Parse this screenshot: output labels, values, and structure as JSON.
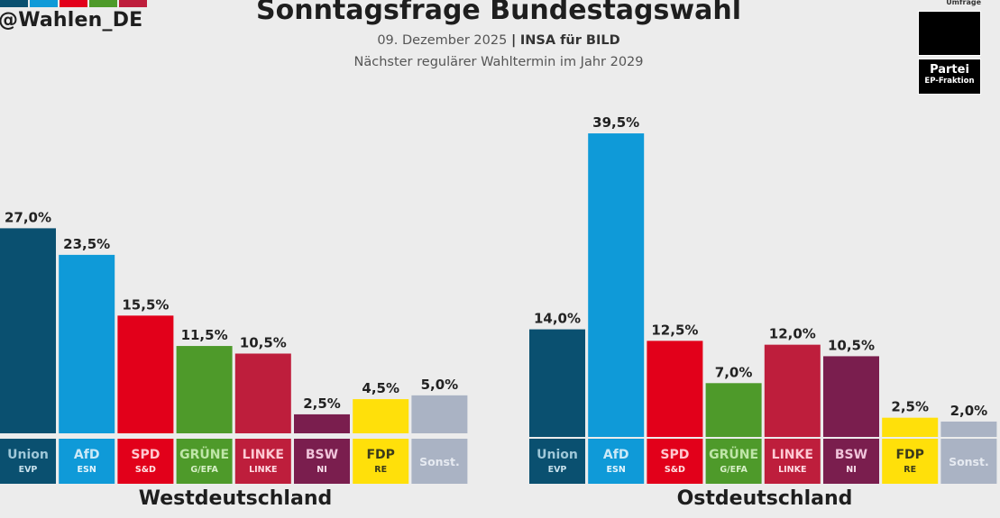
{
  "header": {
    "handle": "@Wahlen_DE",
    "title": "Sonntagsfrage Bundestagswahl",
    "date": "09. Dezember 2025",
    "separator": "|",
    "pollster": "INSA für BILD",
    "note": "Nächster regulärer Wahltermin im Jahr 2029",
    "logo_colors": [
      "#0a5070",
      "#0f9ad8",
      "#e2001a",
      "#4e9a2a",
      "#be1e3c"
    ]
  },
  "legend": {
    "head": "Umfrage",
    "parties_label": "Partei",
    "group_label": "EP-Fraktion"
  },
  "parties": [
    {
      "name": "Union",
      "group": "EVP",
      "color": "#0a5070",
      "text_color": "#9fc7d8",
      "group_color": "#c8e1ec"
    },
    {
      "name": "AfD",
      "group": "ESN",
      "color": "#0f9ad8",
      "text_color": "#cbe9f7",
      "group_color": "#e6f5fc"
    },
    {
      "name": "SPD",
      "group": "S&D",
      "color": "#e2001a",
      "text_color": "#ffc9cf",
      "group_color": "#ffe2e5"
    },
    {
      "name": "GRÜNE",
      "group": "G/EFA",
      "color": "#4e9a2a",
      "text_color": "#bfe6a8",
      "group_color": "#d8f0c9"
    },
    {
      "name": "LINKE",
      "group": "LINKE",
      "color": "#be1e3c",
      "text_color": "#ffc9d3",
      "group_color": "#ffdee5"
    },
    {
      "name": "BSW",
      "group": "NI",
      "color": "#7a1e4e",
      "text_color": "#f0c3da",
      "group_color": "#fbe3ef"
    },
    {
      "name": "FDP",
      "group": "RE",
      "color": "#ffe00a",
      "text_color": "#3a3a1a",
      "group_color": "#3a3a1a"
    },
    {
      "name": "Sonst.",
      "group": "",
      "color": "#aab3c4",
      "text_color": "#e6eaf1",
      "group_color": "#e6eaf1"
    }
  ],
  "chart_data": [
    {
      "type": "bar",
      "title": "Westdeutschland",
      "categories": [
        "Union",
        "AfD",
        "SPD",
        "GRÜNE",
        "LINKE",
        "BSW",
        "FDP",
        "Sonst."
      ],
      "subcategories": [
        "EVP",
        "ESN",
        "S&D",
        "G/EFA",
        "LINKE",
        "NI",
        "RE",
        ""
      ],
      "values": [
        27.0,
        23.5,
        15.5,
        11.5,
        10.5,
        2.5,
        4.5,
        5.0
      ],
      "labels": [
        "27,0%",
        "23,5%",
        "15,5%",
        "11,5%",
        "10,5%",
        "2,5%",
        "4,5%",
        "5,0%"
      ],
      "xlabel": "",
      "ylabel": "",
      "ylim": [
        0,
        40
      ],
      "grid": false
    },
    {
      "type": "bar",
      "title": "Ostdeutschland",
      "categories": [
        "Union",
        "AfD",
        "SPD",
        "GRÜNE",
        "LINKE",
        "BSW",
        "FDP",
        "Sonst."
      ],
      "subcategories": [
        "EVP",
        "ESN",
        "S&D",
        "G/EFA",
        "LINKE",
        "NI",
        "RE",
        ""
      ],
      "values": [
        14.0,
        39.5,
        12.5,
        7.0,
        12.0,
        10.5,
        2.5,
        2.0
      ],
      "labels": [
        "14,0%",
        "39,5%",
        "12,5%",
        "7,0%",
        "12,0%",
        "10,5%",
        "2,5%",
        "2,0%"
      ],
      "xlabel": "",
      "ylabel": "",
      "ylim": [
        0,
        40
      ],
      "grid": false
    }
  ]
}
